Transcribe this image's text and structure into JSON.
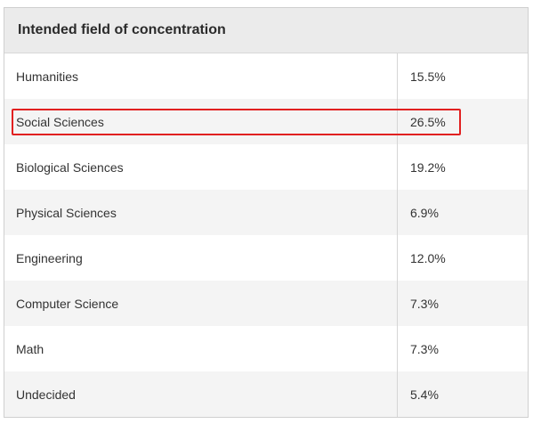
{
  "table": {
    "header": "Intended field of concentration",
    "rows": [
      {
        "field": "Humanities",
        "value": "15.5%"
      },
      {
        "field": "Social Sciences",
        "value": "26.5%"
      },
      {
        "field": "Biological Sciences",
        "value": "19.2%"
      },
      {
        "field": "Physical Sciences",
        "value": "6.9%"
      },
      {
        "field": "Engineering",
        "value": "12.0%"
      },
      {
        "field": "Computer Science",
        "value": "7.3%"
      },
      {
        "field": "Math",
        "value": "7.3%"
      },
      {
        "field": "Undecided",
        "value": "5.4%"
      }
    ],
    "highlighted_row": "Social Sciences"
  },
  "colors": {
    "header_background": "#ebebeb",
    "alternate_row_background": "#f4f4f4",
    "highlight_border": "#e12020"
  }
}
